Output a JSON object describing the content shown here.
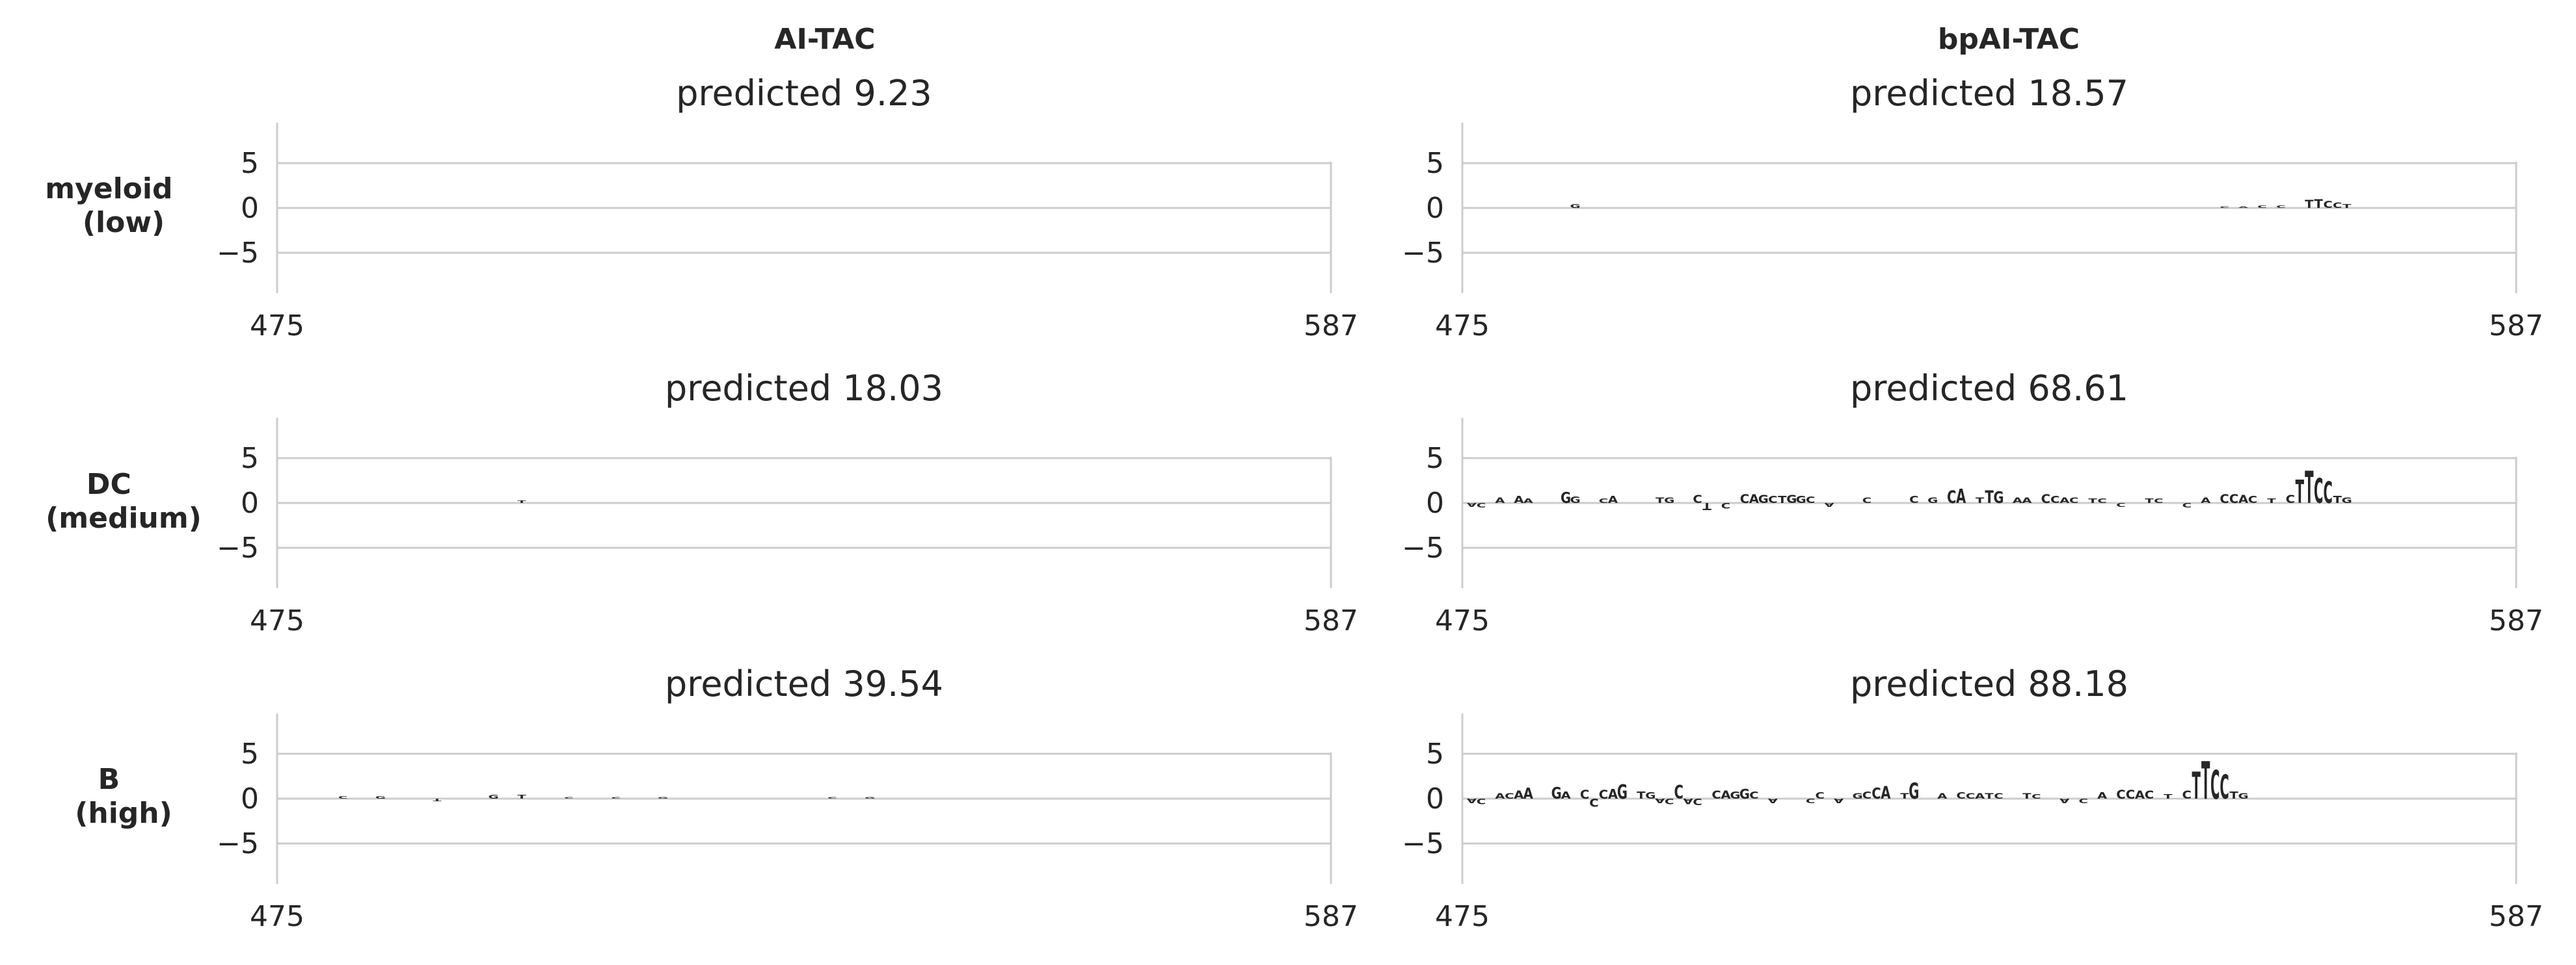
{
  "columns": [
    "AI-TAC",
    "bpAI-TAC"
  ],
  "rows": [
    {
      "label_lines": [
        "myeloid",
        "(low)"
      ]
    },
    {
      "label_lines": [
        "DC",
        "(medium)"
      ]
    },
    {
      "label_lines": [
        "B",
        "(high)"
      ]
    }
  ],
  "colors": {
    "A": "#109648",
    "C": "#255c99",
    "G": "#f7b32b",
    "T": "#d62839",
    "grid": "#cccccc",
    "text": "#262626"
  },
  "chart_data": [
    {
      "type": "sequence-logo",
      "model": "AI-TAC",
      "cell_type": "myeloid (low)",
      "title": "predicted 9.23",
      "xlim": [
        475,
        587
      ],
      "xticks": [
        475,
        587
      ],
      "ylim": [
        -9.5,
        9.5
      ],
      "yticks": [
        5,
        0,
        -5
      ],
      "grid": true,
      "letters": []
    },
    {
      "type": "sequence-logo",
      "model": "bpAI-TAC",
      "cell_type": "myeloid (low)",
      "title": "predicted 18.57",
      "xlim": [
        475,
        587
      ],
      "xticks": [
        475,
        587
      ],
      "ylim": [
        -9.5,
        9.5
      ],
      "yticks": [
        5,
        0,
        -5
      ],
      "grid": true,
      "letters": [
        {
          "pos": 487,
          "base": "G",
          "value": 0.4
        },
        {
          "pos": 556,
          "base": "C",
          "value": 0.2
        },
        {
          "pos": 558,
          "base": "A",
          "value": 0.2
        },
        {
          "pos": 560,
          "base": "C",
          "value": 0.3
        },
        {
          "pos": 562,
          "base": "C",
          "value": 0.3
        },
        {
          "pos": 565,
          "base": "T",
          "value": 0.9
        },
        {
          "pos": 566,
          "base": "T",
          "value": 1.0
        },
        {
          "pos": 567,
          "base": "C",
          "value": 0.8
        },
        {
          "pos": 568,
          "base": "C",
          "value": 0.6
        },
        {
          "pos": 569,
          "base": "T",
          "value": 0.4
        }
      ]
    },
    {
      "type": "sequence-logo",
      "model": "AI-TAC",
      "cell_type": "DC (medium)",
      "title": "predicted 18.03",
      "xlim": [
        475,
        587
      ],
      "xticks": [
        475,
        587
      ],
      "ylim": [
        -9.5,
        9.5
      ],
      "yticks": [
        5,
        0,
        -5
      ],
      "grid": true,
      "letters": [
        {
          "pos": 501,
          "base": "T",
          "value": 0.3
        }
      ]
    },
    {
      "type": "sequence-logo",
      "model": "bpAI-TAC",
      "cell_type": "DC (medium)",
      "title": "predicted 68.61",
      "xlim": [
        475,
        587
      ],
      "xticks": [
        475,
        587
      ],
      "ylim": [
        -9.5,
        9.5
      ],
      "yticks": [
        5,
        0,
        -5
      ],
      "grid": true,
      "letters": [
        {
          "pos": 476,
          "base": "A",
          "value": -0.4
        },
        {
          "pos": 477,
          "base": "C",
          "value": -0.5
        },
        {
          "pos": 479,
          "base": "A",
          "value": 0.6
        },
        {
          "pos": 481,
          "base": "A",
          "value": 0.8
        },
        {
          "pos": 482,
          "base": "A",
          "value": 0.5
        },
        {
          "pos": 486,
          "base": "G",
          "value": 1.2
        },
        {
          "pos": 487,
          "base": "G",
          "value": 0.7
        },
        {
          "pos": 490,
          "base": "C",
          "value": 0.5
        },
        {
          "pos": 491,
          "base": "A",
          "value": 0.8
        },
        {
          "pos": 496,
          "base": "T",
          "value": 0.6
        },
        {
          "pos": 497,
          "base": "G",
          "value": 0.6
        },
        {
          "pos": 500,
          "base": "C",
          "value": 0.9
        },
        {
          "pos": 501,
          "base": "T",
          "value": -0.8
        },
        {
          "pos": 503,
          "base": "C",
          "value": -0.6
        },
        {
          "pos": 505,
          "base": "C",
          "value": 1.0
        },
        {
          "pos": 506,
          "base": "A",
          "value": 1.0
        },
        {
          "pos": 507,
          "base": "G",
          "value": 0.9
        },
        {
          "pos": 508,
          "base": "C",
          "value": 0.8
        },
        {
          "pos": 509,
          "base": "T",
          "value": 0.8
        },
        {
          "pos": 510,
          "base": "G",
          "value": 0.9
        },
        {
          "pos": 511,
          "base": "G",
          "value": 0.8
        },
        {
          "pos": 512,
          "base": "C",
          "value": 0.7
        },
        {
          "pos": 514,
          "base": "A",
          "value": -0.4
        },
        {
          "pos": 518,
          "base": "C",
          "value": 0.6
        },
        {
          "pos": 523,
          "base": "C",
          "value": 0.8
        },
        {
          "pos": 525,
          "base": "G",
          "value": 0.6
        },
        {
          "pos": 527,
          "base": "C",
          "value": 1.4
        },
        {
          "pos": 528,
          "base": "A",
          "value": 1.6
        },
        {
          "pos": 530,
          "base": "T",
          "value": 0.6
        },
        {
          "pos": 531,
          "base": "T",
          "value": 1.4
        },
        {
          "pos": 532,
          "base": "G",
          "value": 1.3
        },
        {
          "pos": 534,
          "base": "A",
          "value": 0.6
        },
        {
          "pos": 535,
          "base": "A",
          "value": 0.6
        },
        {
          "pos": 537,
          "base": "C",
          "value": 1.0
        },
        {
          "pos": 538,
          "base": "C",
          "value": 0.8
        },
        {
          "pos": 539,
          "base": "A",
          "value": 0.6
        },
        {
          "pos": 540,
          "base": "C",
          "value": 0.6
        },
        {
          "pos": 542,
          "base": "T",
          "value": 0.5
        },
        {
          "pos": 543,
          "base": "C",
          "value": 0.5
        },
        {
          "pos": 545,
          "base": "C",
          "value": -0.4
        },
        {
          "pos": 548,
          "base": "T",
          "value": 0.5
        },
        {
          "pos": 549,
          "base": "C",
          "value": 0.5
        },
        {
          "pos": 552,
          "base": "C",
          "value": -0.5
        },
        {
          "pos": 554,
          "base": "A",
          "value": 0.6
        },
        {
          "pos": 556,
          "base": "C",
          "value": 1.0
        },
        {
          "pos": 557,
          "base": "C",
          "value": 1.0
        },
        {
          "pos": 558,
          "base": "A",
          "value": 0.9
        },
        {
          "pos": 559,
          "base": "C",
          "value": 0.8
        },
        {
          "pos": 561,
          "base": "T",
          "value": 0.5
        },
        {
          "pos": 563,
          "base": "C",
          "value": 0.9
        },
        {
          "pos": 564,
          "base": "T",
          "value": 2.6
        },
        {
          "pos": 565,
          "base": "T",
          "value": 3.6
        },
        {
          "pos": 566,
          "base": "C",
          "value": 2.8
        },
        {
          "pos": 567,
          "base": "C",
          "value": 2.4
        },
        {
          "pos": 568,
          "base": "T",
          "value": 0.8
        },
        {
          "pos": 569,
          "base": "G",
          "value": 0.6
        }
      ]
    },
    {
      "type": "sequence-logo",
      "model": "AI-TAC",
      "cell_type": "B (high)",
      "title": "predicted 39.54",
      "xlim": [
        475,
        587
      ],
      "xticks": [
        475,
        587
      ],
      "ylim": [
        -9.5,
        9.5
      ],
      "yticks": [
        5,
        0,
        -5
      ],
      "grid": true,
      "letters": [
        {
          "pos": 482,
          "base": "C",
          "value": 0.3
        },
        {
          "pos": 486,
          "base": "G",
          "value": 0.3
        },
        {
          "pos": 492,
          "base": "T",
          "value": -0.3
        },
        {
          "pos": 498,
          "base": "G",
          "value": 0.4
        },
        {
          "pos": 501,
          "base": "T",
          "value": 0.4
        },
        {
          "pos": 506,
          "base": "C",
          "value": 0.2
        },
        {
          "pos": 511,
          "base": "C",
          "value": 0.2
        },
        {
          "pos": 516,
          "base": "G",
          "value": 0.2
        },
        {
          "pos": 534,
          "base": "C",
          "value": 0.2
        },
        {
          "pos": 538,
          "base": "G",
          "value": 0.2
        }
      ]
    },
    {
      "type": "sequence-logo",
      "model": "bpAI-TAC",
      "cell_type": "B (high)",
      "title": "predicted 88.18",
      "xlim": [
        475,
        587
      ],
      "xticks": [
        475,
        587
      ],
      "ylim": [
        -9.5,
        9.5
      ],
      "yticks": [
        5,
        0,
        -5
      ],
      "grid": true,
      "letters": [
        {
          "pos": 476,
          "base": "A",
          "value": -0.5
        },
        {
          "pos": 477,
          "base": "C",
          "value": -0.6
        },
        {
          "pos": 479,
          "base": "A",
          "value": 0.6
        },
        {
          "pos": 480,
          "base": "C",
          "value": 0.6
        },
        {
          "pos": 481,
          "base": "A",
          "value": 0.9
        },
        {
          "pos": 482,
          "base": "A",
          "value": 1.2
        },
        {
          "pos": 485,
          "base": "G",
          "value": 1.3
        },
        {
          "pos": 486,
          "base": "A",
          "value": 0.8
        },
        {
          "pos": 488,
          "base": "C",
          "value": 1.0
        },
        {
          "pos": 489,
          "base": "C",
          "value": -0.9
        },
        {
          "pos": 490,
          "base": "C",
          "value": 1.0
        },
        {
          "pos": 491,
          "base": "A",
          "value": 1.1
        },
        {
          "pos": 492,
          "base": "G",
          "value": 1.6
        },
        {
          "pos": 494,
          "base": "T",
          "value": 0.8
        },
        {
          "pos": 495,
          "base": "G",
          "value": 0.7
        },
        {
          "pos": 496,
          "base": "A",
          "value": -0.5
        },
        {
          "pos": 497,
          "base": "C",
          "value": -0.6
        },
        {
          "pos": 498,
          "base": "C",
          "value": 1.5
        },
        {
          "pos": 499,
          "base": "A",
          "value": -0.6
        },
        {
          "pos": 500,
          "base": "C",
          "value": -0.7
        },
        {
          "pos": 502,
          "base": "C",
          "value": 0.9
        },
        {
          "pos": 503,
          "base": "A",
          "value": 0.9
        },
        {
          "pos": 504,
          "base": "G",
          "value": 0.8
        },
        {
          "pos": 505,
          "base": "G",
          "value": 1.1
        },
        {
          "pos": 506,
          "base": "C",
          "value": 0.8
        },
        {
          "pos": 508,
          "base": "A",
          "value": -0.5
        },
        {
          "pos": 512,
          "base": "C",
          "value": -0.5
        },
        {
          "pos": 513,
          "base": "C",
          "value": 0.7
        },
        {
          "pos": 515,
          "base": "A",
          "value": -0.5
        },
        {
          "pos": 517,
          "base": "G",
          "value": 0.6
        },
        {
          "pos": 518,
          "base": "C",
          "value": 0.8
        },
        {
          "pos": 519,
          "base": "C",
          "value": 1.2
        },
        {
          "pos": 520,
          "base": "A",
          "value": 1.4
        },
        {
          "pos": 522,
          "base": "T",
          "value": 0.6
        },
        {
          "pos": 523,
          "base": "G",
          "value": 1.8
        },
        {
          "pos": 526,
          "base": "A",
          "value": 0.6
        },
        {
          "pos": 528,
          "base": "C",
          "value": 0.7
        },
        {
          "pos": 529,
          "base": "C",
          "value": 0.6
        },
        {
          "pos": 530,
          "base": "A",
          "value": 0.6
        },
        {
          "pos": 531,
          "base": "T",
          "value": 0.6
        },
        {
          "pos": 532,
          "base": "C",
          "value": 0.6
        },
        {
          "pos": 535,
          "base": "T",
          "value": 0.6
        },
        {
          "pos": 536,
          "base": "C",
          "value": 0.5
        },
        {
          "pos": 539,
          "base": "A",
          "value": -0.5
        },
        {
          "pos": 541,
          "base": "C",
          "value": -0.5
        },
        {
          "pos": 543,
          "base": "A",
          "value": 0.7
        },
        {
          "pos": 545,
          "base": "C",
          "value": 1.0
        },
        {
          "pos": 546,
          "base": "C",
          "value": 1.0
        },
        {
          "pos": 547,
          "base": "A",
          "value": 0.9
        },
        {
          "pos": 548,
          "base": "C",
          "value": 0.9
        },
        {
          "pos": 550,
          "base": "T",
          "value": 0.5
        },
        {
          "pos": 552,
          "base": "C",
          "value": 0.9
        },
        {
          "pos": 553,
          "base": "T",
          "value": 3.0
        },
        {
          "pos": 554,
          "base": "T",
          "value": 4.2
        },
        {
          "pos": 555,
          "base": "C",
          "value": 3.2
        },
        {
          "pos": 556,
          "base": "C",
          "value": 2.7
        },
        {
          "pos": 557,
          "base": "T",
          "value": 0.8
        },
        {
          "pos": 558,
          "base": "G",
          "value": 0.6
        }
      ]
    }
  ]
}
